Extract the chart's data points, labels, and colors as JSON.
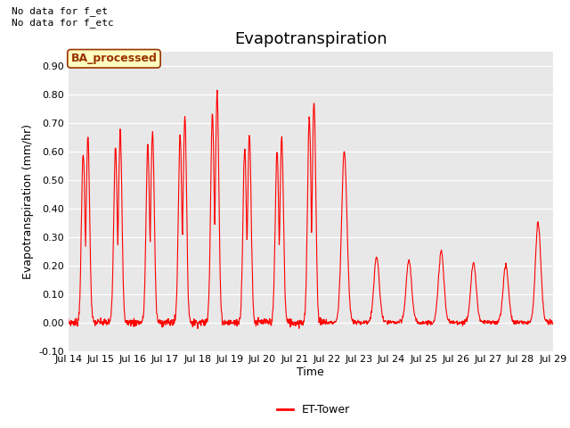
{
  "title": "Evapotranspiration",
  "xlabel": "Time",
  "ylabel": "Evapotranspiration (mm/hr)",
  "ylim": [
    -0.1,
    0.95
  ],
  "yticks": [
    -0.1,
    0.0,
    0.1,
    0.2,
    0.3,
    0.4,
    0.5,
    0.6,
    0.7,
    0.8,
    0.9
  ],
  "line_color": "#FF0000",
  "bg_color": "#E8E8E8",
  "annotation1": "No data for f_et",
  "annotation2": "No data for f_etc",
  "ba_legend_text": "BA_processed",
  "legend_label": "ET-Tower",
  "title_fontsize": 13,
  "axis_label_fontsize": 9,
  "tick_fontsize": 8,
  "annot_fontsize": 8,
  "ba_box_facecolor": "#FFFFC0",
  "ba_box_edgecolor": "#993300",
  "ba_text_color": "#993300",
  "day_amplitudes": [
    0.65,
    0.67,
    0.67,
    0.72,
    0.8,
    0.66,
    0.65,
    0.78,
    0.6,
    0.23,
    0.22,
    0.25,
    0.21,
    0.2,
    0.35
  ],
  "n_days": 15,
  "random_seed": 7
}
